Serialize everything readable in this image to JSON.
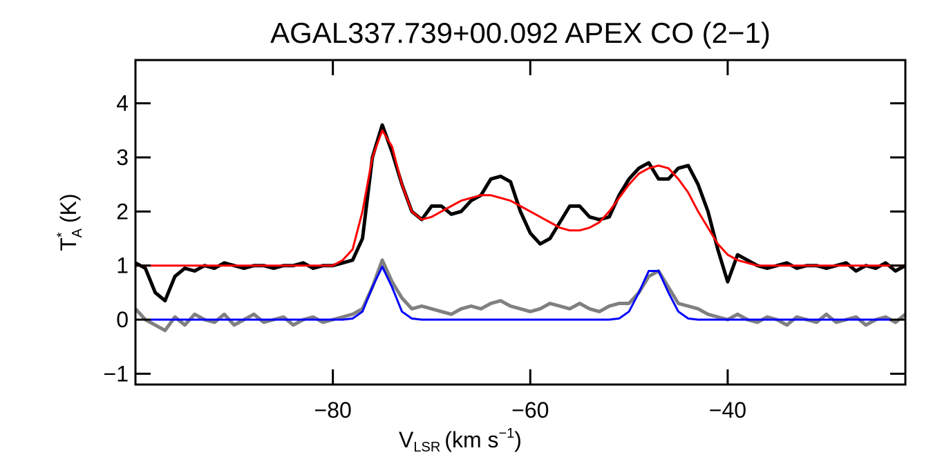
{
  "chart_data": {
    "type": "line",
    "title": "AGAL337.739+00.092  APEX CO (2−1)",
    "xlabel": {
      "main": "V",
      "sub": "LSR",
      "unit": "(km s",
      "sup": "−1",
      "close": ")"
    },
    "ylabel": {
      "main": "T",
      "sup": "*",
      "sub": "A",
      "unit": "(K)"
    },
    "xlim": [
      -100,
      -22
    ],
    "ylim": [
      -1.2,
      4.8
    ],
    "xticks": [
      {
        "value": -80,
        "label": "−80"
      },
      {
        "value": -60,
        "label": "−60"
      },
      {
        "value": -40,
        "label": "−40"
      }
    ],
    "yticks": [
      {
        "value": -1,
        "label": "−1"
      },
      0,
      1,
      2,
      3,
      4
    ],
    "x": [
      -100,
      -99,
      -98,
      -97,
      -96,
      -95,
      -94,
      -93,
      -92,
      -91,
      -90,
      -89,
      -88,
      -87,
      -86,
      -85,
      -84,
      -83,
      -82,
      -81,
      -80,
      -79,
      -78,
      -77,
      -76,
      -75,
      -74,
      -73,
      -72,
      -71,
      -70,
      -69,
      -68,
      -67,
      -66,
      -65,
      -64,
      -63,
      -62,
      -61,
      -60,
      -59,
      -58,
      -57,
      -56,
      -55,
      -54,
      -53,
      -52,
      -51,
      -50,
      -49,
      -48,
      -47,
      -46,
      -45,
      -44,
      -43,
      -42,
      -41,
      -40,
      -39,
      -38,
      -37,
      -36,
      -35,
      -34,
      -33,
      -32,
      -31,
      -30,
      -29,
      -28,
      -27,
      -26,
      -25,
      -24,
      -23,
      -22
    ],
    "series": [
      {
        "color": "#808080",
        "width": 5,
        "values": [
          0.2,
          0.0,
          -0.1,
          -0.2,
          0.05,
          -0.1,
          0.1,
          0.0,
          -0.05,
          0.1,
          -0.1,
          0.0,
          0.1,
          -0.05,
          0.0,
          0.05,
          -0.1,
          0.0,
          0.05,
          -0.05,
          0.0,
          0.05,
          0.1,
          0.2,
          0.6,
          1.1,
          0.7,
          0.4,
          0.2,
          0.25,
          0.2,
          0.15,
          0.1,
          0.2,
          0.25,
          0.2,
          0.3,
          0.35,
          0.25,
          0.2,
          0.15,
          0.2,
          0.3,
          0.25,
          0.2,
          0.3,
          0.2,
          0.15,
          0.25,
          0.3,
          0.3,
          0.5,
          0.8,
          0.9,
          0.6,
          0.3,
          0.25,
          0.2,
          0.1,
          0.05,
          0.0,
          0.1,
          0.0,
          -0.05,
          0.05,
          0.0,
          -0.1,
          0.05,
          0.0,
          -0.05,
          0.1,
          -0.05,
          0.0,
          0.05,
          -0.1,
          0.0,
          0.05,
          -0.05,
          0.1
        ]
      },
      {
        "color": "#0000ff",
        "width": 3,
        "values": [
          0,
          0,
          0,
          0,
          0,
          0,
          0,
          0,
          0,
          0,
          0,
          0,
          0,
          0,
          0,
          0,
          0,
          0,
          0,
          0,
          0,
          0,
          0.02,
          0.15,
          0.6,
          0.98,
          0.6,
          0.15,
          0.02,
          0,
          0,
          0,
          0,
          0,
          0,
          0,
          0,
          0,
          0,
          0,
          0,
          0,
          0,
          0,
          0,
          0,
          0,
          0,
          0,
          0.02,
          0.15,
          0.5,
          0.9,
          0.9,
          0.5,
          0.15,
          0.02,
          0,
          0,
          0,
          0,
          0,
          0,
          0,
          0,
          0,
          0,
          0,
          0,
          0,
          0,
          0,
          0,
          0,
          0,
          0,
          0,
          0,
          0
        ]
      },
      {
        "color": "#000000",
        "width": 5,
        "values": [
          1.05,
          0.95,
          0.5,
          0.35,
          0.8,
          0.95,
          0.9,
          1.0,
          0.95,
          1.05,
          1.0,
          0.95,
          1.0,
          1.0,
          0.95,
          1.0,
          1.0,
          1.05,
          0.95,
          1.0,
          1.0,
          1.05,
          1.1,
          1.5,
          3.0,
          3.6,
          3.1,
          2.5,
          2.0,
          1.85,
          2.1,
          2.1,
          1.95,
          2.0,
          2.2,
          2.3,
          2.6,
          2.65,
          2.55,
          2.0,
          1.6,
          1.4,
          1.5,
          1.8,
          2.1,
          2.1,
          1.9,
          1.85,
          1.9,
          2.3,
          2.6,
          2.8,
          2.9,
          2.6,
          2.6,
          2.8,
          2.85,
          2.5,
          2.0,
          1.3,
          0.7,
          1.2,
          1.1,
          1.0,
          0.95,
          1.0,
          1.05,
          0.95,
          1.0,
          1.0,
          0.95,
          1.0,
          1.05,
          0.9,
          1.0,
          0.95,
          1.05,
          0.9,
          1.0
        ]
      },
      {
        "color": "#ff0000",
        "width": 3,
        "values": [
          1.0,
          1.0,
          1.0,
          1.0,
          1.0,
          1.0,
          1.0,
          1.0,
          1.0,
          1.0,
          1.0,
          1.0,
          1.0,
          1.0,
          1.0,
          1.0,
          1.0,
          1.0,
          1.0,
          1.0,
          1.0,
          1.1,
          1.3,
          2.0,
          3.0,
          3.5,
          3.2,
          2.5,
          2.0,
          1.85,
          1.9,
          2.0,
          2.1,
          2.2,
          2.25,
          2.3,
          2.3,
          2.25,
          2.2,
          2.1,
          2.0,
          1.9,
          1.8,
          1.7,
          1.65,
          1.65,
          1.7,
          1.8,
          2.0,
          2.25,
          2.5,
          2.7,
          2.8,
          2.85,
          2.8,
          2.6,
          2.35,
          2.0,
          1.7,
          1.4,
          1.2,
          1.1,
          1.05,
          1.0,
          1.0,
          1.0,
          1.0,
          1.0,
          1.0,
          1.0,
          1.0,
          1.0,
          1.0,
          1.0,
          1.0,
          1.0,
          1.0,
          1.0,
          1.0
        ]
      }
    ]
  }
}
